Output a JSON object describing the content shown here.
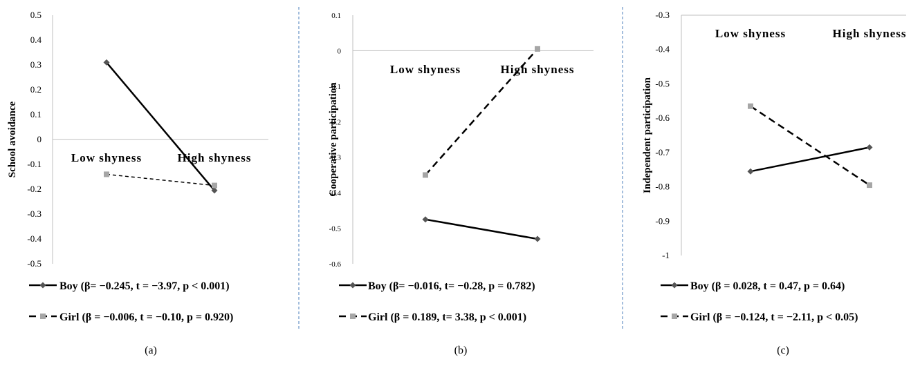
{
  "chart_data": [
    {
      "type": "line",
      "panel_label": "(a)",
      "ylabel": "School avoidance",
      "categories": [
        "Low shyness",
        "High shyness"
      ],
      "ylim": [
        -0.5,
        0.5
      ],
      "yticks": [
        "0.5",
        "0.4",
        "0.3",
        "0.2",
        "0.1",
        "0",
        "-0.1",
        "-0.2",
        "-0.3",
        "-0.4",
        "-0.5"
      ],
      "series": [
        {
          "name": "Boy  (β= −0.245, t = −3.97, p < 0.001)",
          "values": [
            0.31,
            -0.205
          ],
          "style": "solid",
          "color": "#000000",
          "marker": "diamond",
          "marker_color": "#555555"
        },
        {
          "name": "Girl (β = −0.006, t = −0.10, p = 0.920)",
          "values": [
            -0.14,
            -0.185
          ],
          "style": "dashed",
          "color": "#000000",
          "marker": "square",
          "marker_color": "#a6a6a6"
        }
      ]
    },
    {
      "type": "line",
      "panel_label": "(b)",
      "ylabel": "Cooperative participation",
      "categories": [
        "Low shyness",
        "High shyness"
      ],
      "ylim": [
        -0.6,
        0.1
      ],
      "yticks": [
        "0.1",
        "0",
        "-0.1",
        "-0.2",
        "-0.3",
        "-0.4",
        "-0.5",
        "-0.6"
      ],
      "series": [
        {
          "name": "Boy (β= −0.016, t= −0.28, p = 0.782)",
          "values": [
            -0.475,
            -0.53
          ],
          "style": "solid",
          "color": "#000000",
          "marker": "diamond",
          "marker_color": "#555555"
        },
        {
          "name": "Girl (β = 0.189, t= 3.38, p < 0.001)",
          "values": [
            -0.35,
            0.005
          ],
          "style": "dashed",
          "color": "#000000",
          "marker": "square",
          "marker_color": "#a6a6a6"
        }
      ]
    },
    {
      "type": "line",
      "panel_label": "(c)",
      "ylabel": "Independent participation",
      "categories": [
        "Low shyness",
        "High shyness"
      ],
      "ylim": [
        -1,
        -0.3
      ],
      "yticks": [
        "-0.3",
        "-0.4",
        "-0.5",
        "-0.6",
        "-0.7",
        "-0.8",
        "-0.9",
        "-1"
      ],
      "series": [
        {
          "name": "Boy (β = 0.028, t = 0.47, p = 0.64)",
          "values": [
            -0.755,
            -0.685
          ],
          "style": "solid",
          "color": "#000000",
          "marker": "diamond",
          "marker_color": "#555555"
        },
        {
          "name": "Girl (β = −0.124, t = −2.11, p < 0.05)",
          "values": [
            -0.565,
            -0.795
          ],
          "style": "dashed",
          "color": "#000000",
          "marker": "square",
          "marker_color": "#a6a6a6"
        }
      ]
    }
  ]
}
